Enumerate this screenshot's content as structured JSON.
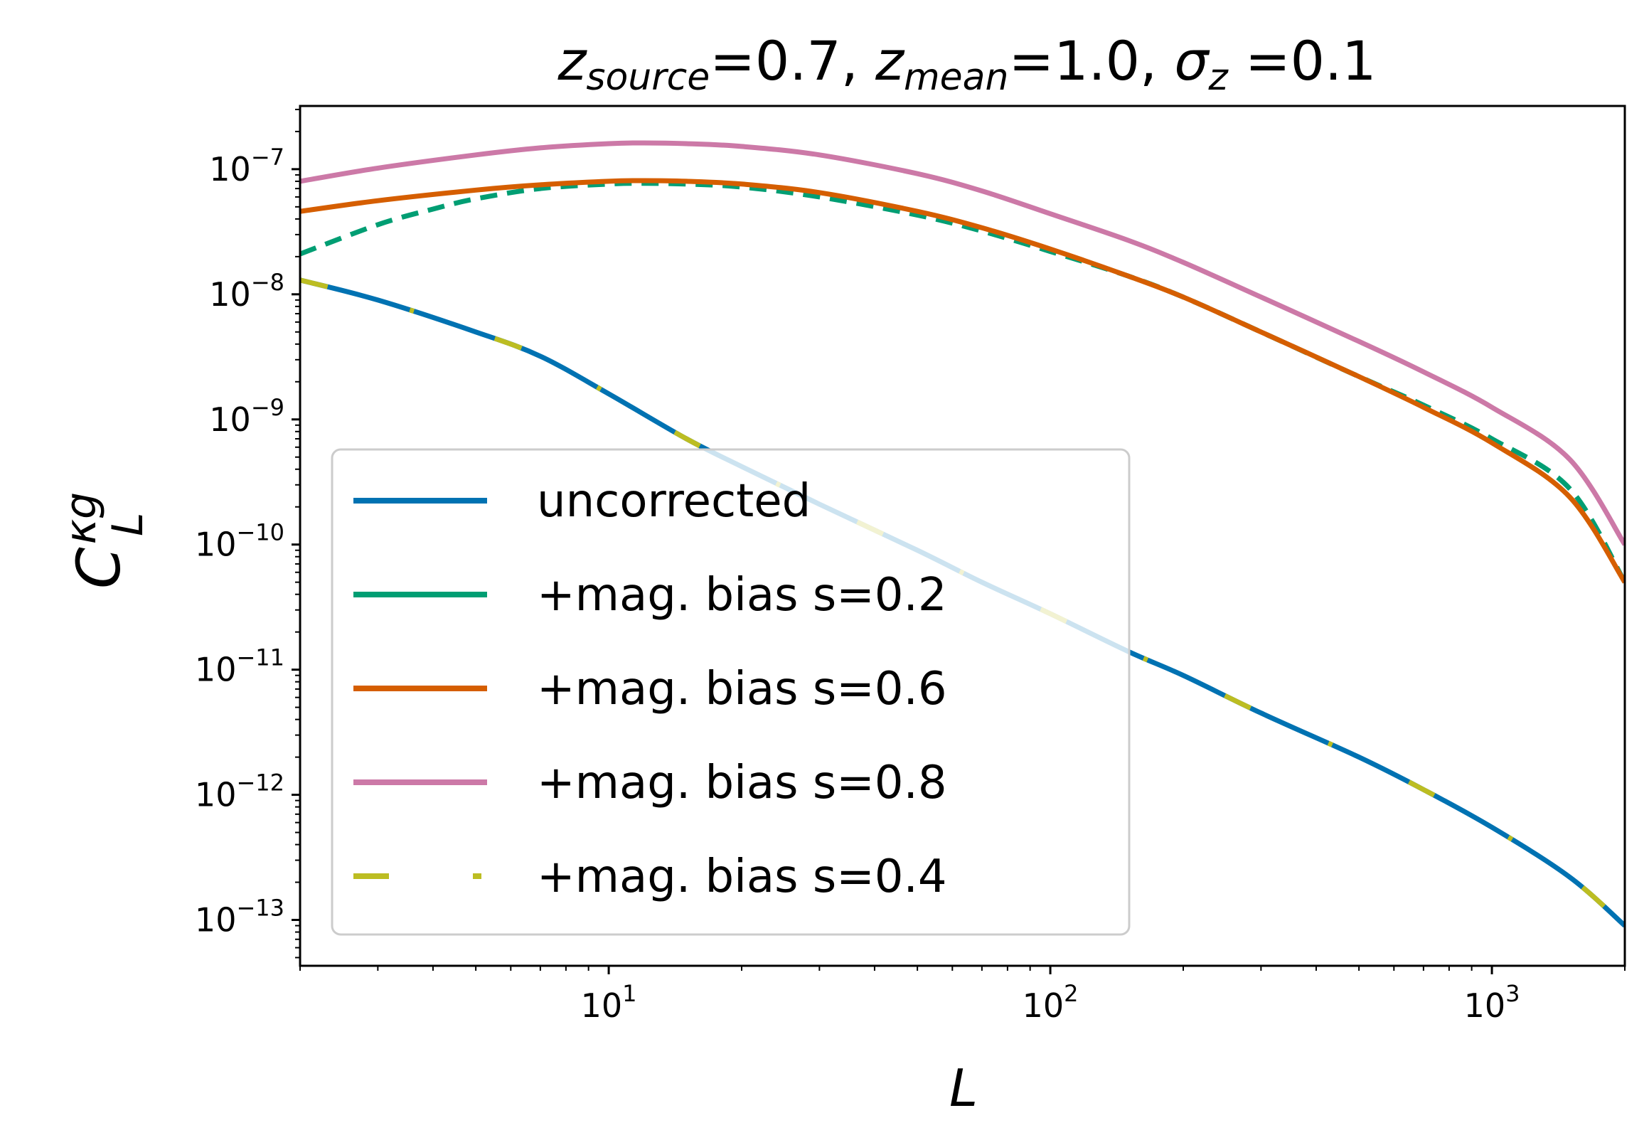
{
  "chart_data": {
    "type": "line",
    "title": {
      "z_source_base": "z",
      "z_source_sub": "source",
      "z_source_value": "=0.7, ",
      "z_mean_base": "z",
      "z_mean_sub": "mean",
      "z_mean_value": "=1.0, ",
      "sigma_base": "σ",
      "sigma_sub": "z",
      "sigma_value": " =0.1"
    },
    "xlabel": "L",
    "ylabel": {
      "base": "C",
      "sub": "L",
      "sup": "κg"
    },
    "xscale": "log",
    "yscale": "log",
    "xlim": [
      2,
      2000
    ],
    "ylim": [
      4.3e-14,
      3.2e-07
    ],
    "xticks": [
      {
        "value": 10,
        "base": "10",
        "exp": "1"
      },
      {
        "value": 100,
        "base": "10",
        "exp": "2"
      },
      {
        "value": 1000,
        "base": "10",
        "exp": "3"
      }
    ],
    "yticks": [
      {
        "value": 1e-07,
        "base": "10",
        "exp": "−7"
      },
      {
        "value": 1e-08,
        "base": "10",
        "exp": "−8"
      },
      {
        "value": 1e-09,
        "base": "10",
        "exp": "−9"
      },
      {
        "value": 1e-10,
        "base": "10",
        "exp": "−10"
      },
      {
        "value": 1e-11,
        "base": "10",
        "exp": "−11"
      },
      {
        "value": 1e-12,
        "base": "10",
        "exp": "−12"
      },
      {
        "value": 1e-13,
        "base": "10",
        "exp": "−13"
      }
    ],
    "grid": false,
    "legend_position": "lower-left",
    "series": [
      {
        "name": "uncorrected",
        "color": "#0072B2",
        "style": "solid",
        "x": [
          2,
          3,
          5,
          7,
          10,
          15,
          20,
          30,
          50,
          70,
          100,
          150,
          200,
          300,
          500,
          700,
          1000,
          1500,
          2000
        ],
        "y": [
          1.3e-08,
          9e-09,
          5e-09,
          3.2e-09,
          1.6e-09,
          7e-10,
          4.2e-10,
          2.1e-10,
          9e-11,
          5e-11,
          2.8e-11,
          1.4e-11,
          9e-12,
          4.5e-12,
          2e-12,
          1.1e-12,
          5.5e-13,
          2.2e-13,
          9e-14
        ]
      },
      {
        "name": "+mag. bias s=0.2",
        "color": "#009E73",
        "style": "dashed",
        "x": [
          2,
          3,
          4,
          5,
          7,
          10,
          12,
          15,
          20,
          30,
          50,
          70,
          100,
          150,
          200,
          300,
          500,
          700,
          1000,
          1500,
          2000
        ],
        "y": [
          2.1e-08,
          3.6e-08,
          4.8e-08,
          5.8e-08,
          7e-08,
          7.6e-08,
          7.7e-08,
          7.6e-08,
          7.2e-08,
          6e-08,
          4.3e-08,
          3.2e-08,
          2.2e-08,
          1.4e-08,
          9.5e-09,
          5e-09,
          2.2e-09,
          1.3e-09,
          7e-10,
          2.8e-10,
          5e-11
        ]
      },
      {
        "name": "+mag. bias s=0.6",
        "color": "#D55E00",
        "style": "solid",
        "x": [
          2,
          3,
          5,
          7,
          10,
          12,
          15,
          20,
          30,
          50,
          70,
          100,
          150,
          200,
          300,
          500,
          700,
          1000,
          1500,
          2000
        ],
        "y": [
          4.6e-08,
          5.6e-08,
          6.8e-08,
          7.5e-08,
          8e-08,
          8.1e-08,
          8e-08,
          7.6e-08,
          6.5e-08,
          4.6e-08,
          3.4e-08,
          2.3e-08,
          1.4e-08,
          9.5e-09,
          5e-09,
          2.2e-09,
          1.25e-09,
          6.5e-10,
          2.4e-10,
          5e-11
        ]
      },
      {
        "name": "+mag. bias s=0.8",
        "color": "#CC79A7",
        "style": "solid",
        "x": [
          2,
          3,
          5,
          7,
          10,
          12,
          15,
          20,
          30,
          50,
          70,
          100,
          150,
          200,
          300,
          500,
          700,
          1000,
          1500,
          2000
        ],
        "y": [
          8e-08,
          1.02e-07,
          1.3e-07,
          1.48e-07,
          1.6e-07,
          1.62e-07,
          1.6e-07,
          1.52e-07,
          1.3e-07,
          9.2e-08,
          6.7e-08,
          4.4e-08,
          2.7e-08,
          1.8e-08,
          9.5e-09,
          4.2e-09,
          2.4e-09,
          1.25e-09,
          4.8e-10,
          1e-10
        ]
      },
      {
        "name": "+mag. bias s=0.4",
        "color": "#BCBD22",
        "style": "dashdot",
        "x": [
          2,
          3,
          5,
          7,
          10,
          15,
          20,
          30,
          50,
          70,
          100,
          150,
          200,
          300,
          500,
          700,
          1000,
          1500,
          2000
        ],
        "y": [
          1.3e-08,
          9e-09,
          5e-09,
          3.2e-09,
          1.6e-09,
          7e-10,
          4.2e-10,
          2.1e-10,
          9e-11,
          5e-11,
          2.8e-11,
          1.4e-11,
          9e-12,
          4.5e-12,
          2e-12,
          1.1e-12,
          5.5e-13,
          2.2e-13,
          9e-14
        ]
      }
    ]
  }
}
